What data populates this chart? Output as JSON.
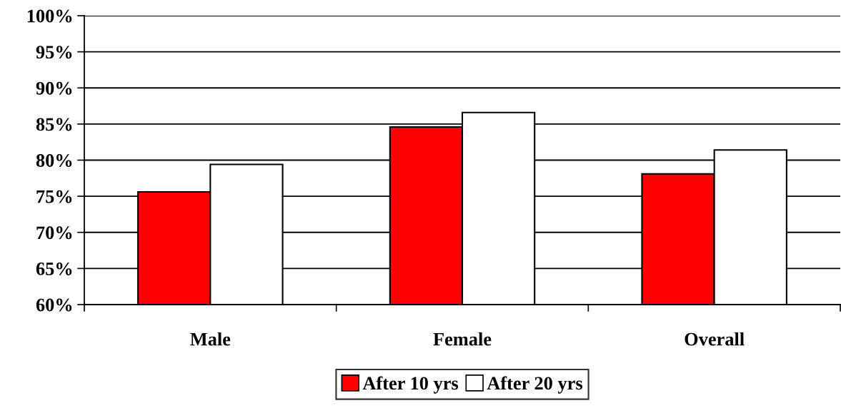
{
  "chart_data": {
    "type": "bar",
    "categories": [
      "Male",
      "Female",
      "Overall"
    ],
    "series": [
      {
        "name": "After 10 yrs",
        "color": "#ff0000",
        "values": [
          75.6,
          84.6,
          78.1
        ]
      },
      {
        "name": "After 20 yrs",
        "color": "#ffffff",
        "values": [
          79.4,
          86.6,
          81.4
        ]
      }
    ],
    "ylim": [
      60,
      100
    ],
    "yticks": [
      {
        "value": 60,
        "label": "60%"
      },
      {
        "value": 65,
        "label": "65%"
      },
      {
        "value": 70,
        "label": "70%"
      },
      {
        "value": 75,
        "label": "75%"
      },
      {
        "value": 80,
        "label": "80%"
      },
      {
        "value": 85,
        "label": "85%"
      },
      {
        "value": 90,
        "label": "90%"
      },
      {
        "value": 95,
        "label": "95%"
      },
      {
        "value": 100,
        "label": "100%"
      }
    ],
    "grid": "y",
    "legend": "bottom"
  }
}
